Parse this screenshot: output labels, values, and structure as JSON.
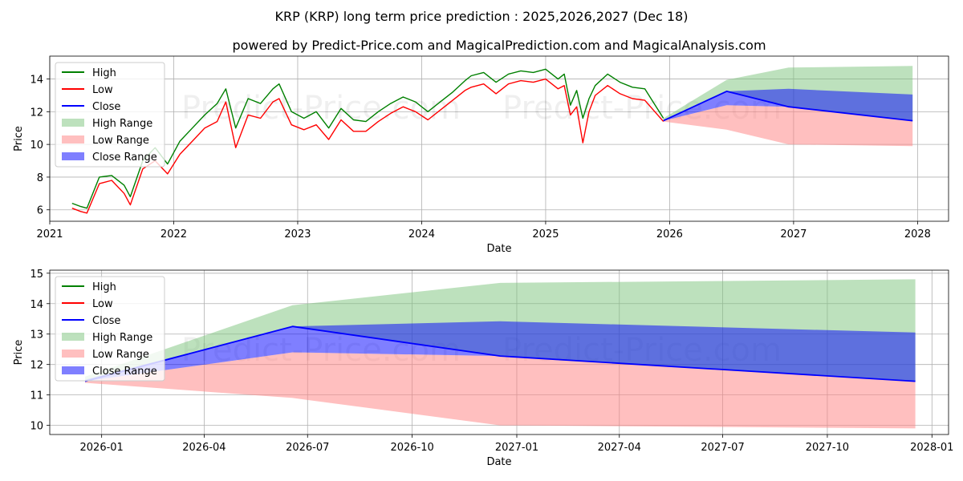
{
  "chart_data": [
    {
      "type": "line",
      "title": "KRP (KRP) long term price prediction : 2025,2026,2027 (Dec 18)",
      "subtitle": "powered by Predict-Price.com and MagicalPrediction.com and MagicalAnalysis.com",
      "watermark": "Predict-Price.com",
      "xlabel": "Date",
      "ylabel": "Price",
      "xlim": [
        2021.0,
        2028.25
      ],
      "ylim": [
        5.3,
        15.4
      ],
      "x_ticks": [
        2021,
        2022,
        2023,
        2024,
        2025,
        2026,
        2027,
        2028
      ],
      "x_tick_labels": [
        "2021",
        "2022",
        "2023",
        "2024",
        "2025",
        "2026",
        "2027",
        "2028"
      ],
      "y_ticks": [
        6,
        8,
        10,
        12,
        14
      ],
      "y_tick_labels": [
        "6",
        "8",
        "10",
        "12",
        "14"
      ],
      "legend": [
        "High",
        "Low",
        "Close",
        "High Range",
        "Low Range",
        "Close Range"
      ],
      "legend_position": "top-left",
      "grid": true,
      "series": [
        {
          "name": "High",
          "color": "#008000",
          "x": [
            2021.18,
            2021.25,
            2021.3,
            2021.4,
            2021.5,
            2021.6,
            2021.65,
            2021.75,
            2021.85,
            2021.95,
            2022.05,
            2022.15,
            2022.25,
            2022.35,
            2022.42,
            2022.5,
            2022.6,
            2022.7,
            2022.8,
            2022.85,
            2022.95,
            2023.05,
            2023.15,
            2023.25,
            2023.35,
            2023.45,
            2023.55,
            2023.65,
            2023.75,
            2023.85,
            2023.95,
            2024.05,
            2024.15,
            2024.25,
            2024.35,
            2024.4,
            2024.5,
            2024.6,
            2024.7,
            2024.8,
            2024.9,
            2025.0,
            2025.1,
            2025.15,
            2025.2,
            2025.25,
            2025.3,
            2025.35,
            2025.4,
            2025.5,
            2025.6,
            2025.7,
            2025.8,
            2025.95
          ],
          "values": [
            6.4,
            6.2,
            6.1,
            8.0,
            8.1,
            7.5,
            6.8,
            9.0,
            9.8,
            8.8,
            10.2,
            11.0,
            11.8,
            12.5,
            13.4,
            11.0,
            12.8,
            12.5,
            13.4,
            13.7,
            12.0,
            11.6,
            12.0,
            11.0,
            12.2,
            11.5,
            11.4,
            12.0,
            12.5,
            12.9,
            12.6,
            12.0,
            12.6,
            13.2,
            13.9,
            14.2,
            14.4,
            13.8,
            14.3,
            14.5,
            14.4,
            14.6,
            14.0,
            14.3,
            12.4,
            13.3,
            11.6,
            12.8,
            13.6,
            14.3,
            13.8,
            13.5,
            13.4,
            11.6
          ]
        },
        {
          "name": "Low",
          "color": "#ff0000",
          "x": [
            2021.18,
            2021.25,
            2021.3,
            2021.4,
            2021.5,
            2021.6,
            2021.65,
            2021.75,
            2021.85,
            2021.95,
            2022.05,
            2022.15,
            2022.25,
            2022.35,
            2022.42,
            2022.5,
            2022.6,
            2022.7,
            2022.8,
            2022.85,
            2022.95,
            2023.05,
            2023.15,
            2023.25,
            2023.35,
            2023.45,
            2023.55,
            2023.65,
            2023.75,
            2023.85,
            2023.95,
            2024.05,
            2024.15,
            2024.25,
            2024.35,
            2024.4,
            2024.5,
            2024.6,
            2024.7,
            2024.8,
            2024.9,
            2025.0,
            2025.1,
            2025.15,
            2025.2,
            2025.25,
            2025.3,
            2025.35,
            2025.4,
            2025.5,
            2025.6,
            2025.7,
            2025.8,
            2025.95
          ],
          "values": [
            6.1,
            5.9,
            5.8,
            7.6,
            7.8,
            7.0,
            6.3,
            8.5,
            9.0,
            8.2,
            9.4,
            10.2,
            11.0,
            11.4,
            12.6,
            9.8,
            11.8,
            11.6,
            12.6,
            12.8,
            11.2,
            10.9,
            11.2,
            10.3,
            11.5,
            10.8,
            10.8,
            11.4,
            11.9,
            12.3,
            12.0,
            11.5,
            12.1,
            12.7,
            13.3,
            13.5,
            13.7,
            13.1,
            13.7,
            13.9,
            13.8,
            14.0,
            13.4,
            13.6,
            11.8,
            12.3,
            10.1,
            12.0,
            13.0,
            13.6,
            13.1,
            12.8,
            12.7,
            11.4
          ]
        },
        {
          "name": "Close",
          "color": "#0000ff",
          "x": [
            2025.95,
            2026.46,
            2026.96,
            2027.96
          ],
          "values": [
            11.45,
            13.25,
            12.3,
            11.45
          ]
        },
        {
          "name": "High Range",
          "color": "#7cc47c",
          "opacity": 0.5,
          "x": [
            2025.95,
            2026.46,
            2026.96,
            2027.96
          ],
          "upper": [
            11.6,
            13.95,
            14.7,
            14.8
          ],
          "lower": [
            11.45,
            13.25,
            12.3,
            11.45
          ]
        },
        {
          "name": "Low Range",
          "color": "#ff8080",
          "opacity": 0.5,
          "x": [
            2025.95,
            2026.46,
            2026.96,
            2027.96
          ],
          "upper": [
            11.45,
            12.4,
            12.3,
            11.45
          ],
          "lower": [
            11.4,
            10.9,
            10.0,
            9.9
          ]
        },
        {
          "name": "Close Range",
          "color": "#0000ff",
          "opacity": 0.5,
          "x": [
            2025.95,
            2026.46,
            2026.96,
            2027.96
          ],
          "upper": [
            11.5,
            13.25,
            13.4,
            13.05
          ],
          "lower": [
            11.45,
            12.4,
            12.3,
            11.45
          ]
        }
      ]
    },
    {
      "type": "line",
      "title": "",
      "xlabel": "Date",
      "ylabel": "Price",
      "xlim": [
        2025.875,
        2028.04
      ],
      "ylim": [
        9.7,
        15.1
      ],
      "x_ticks": [
        2026.0,
        2026.247,
        2026.496,
        2026.748,
        2027.0,
        2027.247,
        2027.496,
        2027.748,
        2028.0
      ],
      "x_tick_labels": [
        "2026-01",
        "2026-04",
        "2026-07",
        "2026-10",
        "2027-01",
        "2027-04",
        "2027-07",
        "2027-10",
        "2028-01"
      ],
      "y_ticks": [
        10,
        11,
        12,
        13,
        14,
        15
      ],
      "y_tick_labels": [
        "10",
        "11",
        "12",
        "13",
        "14",
        "15"
      ],
      "legend": [
        "High",
        "Low",
        "Close",
        "High Range",
        "Low Range",
        "Close Range"
      ],
      "legend_position": "top-left",
      "grid": true,
      "series": [
        {
          "name": "High",
          "color": "#008000",
          "x": [],
          "values": []
        },
        {
          "name": "Low",
          "color": "#ff0000",
          "x": [],
          "values": []
        },
        {
          "name": "Close",
          "color": "#0000ff",
          "x": [
            2025.96,
            2026.46,
            2026.96,
            2027.96
          ],
          "values": [
            11.45,
            13.25,
            12.28,
            11.45
          ]
        },
        {
          "name": "High Range",
          "color": "#7cc47c",
          "opacity": 0.5,
          "x": [
            2025.96,
            2026.46,
            2026.96,
            2027.96
          ],
          "upper": [
            11.6,
            13.95,
            14.68,
            14.8
          ],
          "lower": [
            11.45,
            13.25,
            12.28,
            11.45
          ]
        },
        {
          "name": "Low Range",
          "color": "#ff8080",
          "opacity": 0.5,
          "x": [
            2025.96,
            2026.46,
            2026.96,
            2027.96
          ],
          "upper": [
            11.45,
            12.4,
            12.28,
            11.45
          ],
          "lower": [
            11.4,
            10.9,
            10.0,
            9.9
          ]
        },
        {
          "name": "Close Range",
          "color": "#0000ff",
          "opacity": 0.5,
          "x": [
            2025.96,
            2026.46,
            2026.96,
            2027.96
          ],
          "upper": [
            11.5,
            13.25,
            13.42,
            13.05
          ],
          "lower": [
            11.45,
            12.4,
            12.28,
            11.45
          ]
        }
      ]
    }
  ]
}
